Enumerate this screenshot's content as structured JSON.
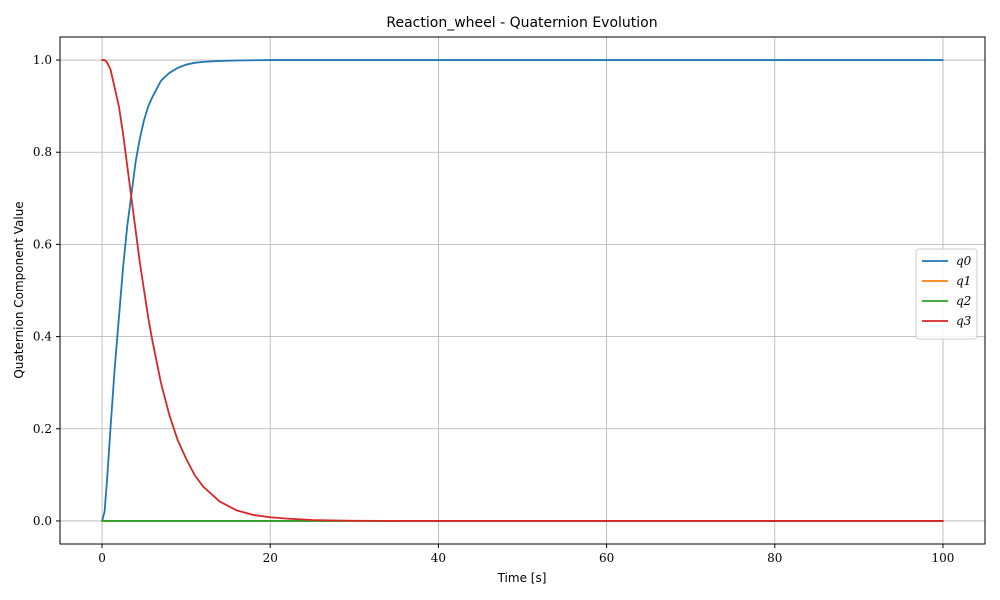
{
  "chart_data": {
    "type": "line",
    "title": "Reaction_wheel - Quaternion Evolution",
    "xlabel": "Time [s]",
    "ylabel": "Quaternion Component Value",
    "xlim": [
      -5,
      105
    ],
    "ylim": [
      -0.05,
      1.05
    ],
    "xticks": [
      0,
      20,
      40,
      60,
      80,
      100
    ],
    "yticks": [
      0.0,
      0.2,
      0.4,
      0.6,
      0.8,
      1.0
    ],
    "xtick_labels": [
      "0",
      "20",
      "40",
      "60",
      "80",
      "100"
    ],
    "ytick_labels": [
      "0.0",
      "0.2",
      "0.4",
      "0.6",
      "0.8",
      "1.0"
    ],
    "grid": true,
    "legend_position": "center-right",
    "series": [
      {
        "name": "q0",
        "color": "#1f77b4",
        "x": [
          0,
          0.3,
          0.6,
          1,
          1.5,
          2,
          2.5,
          3,
          3.5,
          4,
          4.5,
          5,
          5.5,
          6,
          7,
          8,
          9,
          10,
          11,
          12,
          14,
          16,
          18,
          20,
          25,
          30,
          40,
          50,
          60,
          70,
          80,
          90,
          100
        ],
        "y": [
          0.0,
          0.02,
          0.09,
          0.2,
          0.33,
          0.44,
          0.55,
          0.64,
          0.71,
          0.78,
          0.83,
          0.87,
          0.9,
          0.92,
          0.955,
          0.972,
          0.983,
          0.99,
          0.994,
          0.996,
          0.998,
          0.999,
          0.9995,
          1.0,
          1.0,
          1.0,
          1.0,
          1.0,
          1.0,
          1.0,
          1.0,
          1.0,
          1.0
        ]
      },
      {
        "name": "q1",
        "color": "#ff7f0e",
        "x": [
          0,
          100
        ],
        "y": [
          0.0,
          0.0
        ]
      },
      {
        "name": "q2",
        "color": "#2ca02c",
        "x": [
          0,
          100
        ],
        "y": [
          0.0,
          0.0
        ]
      },
      {
        "name": "q3",
        "color": "#d62728",
        "x": [
          0,
          0.3,
          0.6,
          1,
          1.5,
          2,
          2.5,
          3,
          3.5,
          4,
          4.5,
          5,
          5.5,
          6,
          7,
          8,
          9,
          10,
          11,
          12,
          14,
          16,
          18,
          20,
          22,
          25,
          28,
          30,
          35,
          40,
          50,
          60,
          80,
          100
        ],
        "y": [
          1.0,
          1.0,
          0.995,
          0.98,
          0.94,
          0.9,
          0.84,
          0.77,
          0.7,
          0.63,
          0.56,
          0.5,
          0.44,
          0.39,
          0.3,
          0.23,
          0.175,
          0.135,
          0.1,
          0.075,
          0.042,
          0.023,
          0.013,
          0.008,
          0.005,
          0.002,
          0.001,
          0.0005,
          0.0,
          0.0,
          0.0,
          0.0,
          0.0,
          0.0
        ]
      }
    ]
  }
}
